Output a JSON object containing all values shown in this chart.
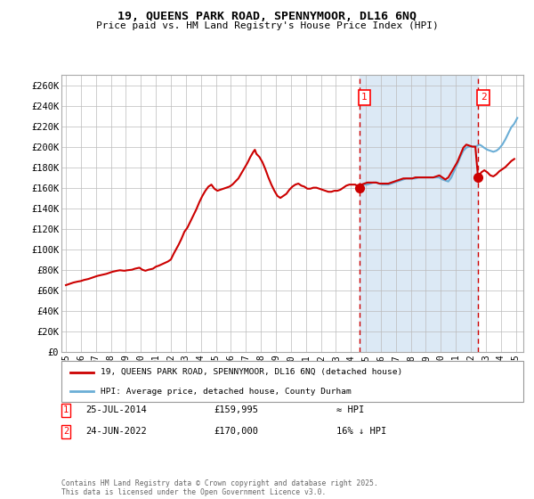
{
  "title": "19, QUEENS PARK ROAD, SPENNYMOOR, DL16 6NQ",
  "subtitle": "Price paid vs. HM Land Registry's House Price Index (HPI)",
  "yticks": [
    0,
    20000,
    40000,
    60000,
    80000,
    100000,
    120000,
    140000,
    160000,
    180000,
    200000,
    220000,
    240000,
    260000
  ],
  "ytick_labels": [
    "£0",
    "£20K",
    "£40K",
    "£60K",
    "£80K",
    "£100K",
    "£120K",
    "£140K",
    "£160K",
    "£180K",
    "£200K",
    "£220K",
    "£240K",
    "£260K"
  ],
  "ylim": [
    0,
    270000
  ],
  "xlim_start": 1994.7,
  "xlim_end": 2025.5,
  "hpi_color": "#6baed6",
  "price_color": "#cc0000",
  "shade_color": "#dce9f5",
  "grid_color": "#bbbbbb",
  "vline_color": "#cc0000",
  "sale1_x": 2014.56,
  "sale1_y": 159995,
  "sale1_label": "1",
  "sale1_date": "25-JUL-2014",
  "sale1_price": "£159,995",
  "sale1_vs_hpi": "≈ HPI",
  "sale2_x": 2022.48,
  "sale2_y": 170000,
  "sale2_label": "2",
  "sale2_date": "24-JUN-2022",
  "sale2_price": "£170,000",
  "sale2_vs_hpi": "16% ↓ HPI",
  "legend_line1": "19, QUEENS PARK ROAD, SPENNYMOOR, DL16 6NQ (detached house)",
  "legend_line2": "HPI: Average price, detached house, County Durham",
  "footnote": "Contains HM Land Registry data © Crown copyright and database right 2025.\nThis data is licensed under the Open Government Licence v3.0.",
  "hpi_data_x": [
    2014.56,
    2014.7,
    2014.88,
    2015.1,
    2015.3,
    2015.5,
    2015.7,
    2015.88,
    2016.1,
    2016.3,
    2016.5,
    2016.7,
    2016.88,
    2017.1,
    2017.3,
    2017.5,
    2017.7,
    2017.88,
    2018.1,
    2018.3,
    2018.5,
    2018.7,
    2018.88,
    2019.1,
    2019.3,
    2019.5,
    2019.7,
    2019.88,
    2020.1,
    2020.3,
    2020.5,
    2020.7,
    2020.88,
    2021.1,
    2021.3,
    2021.5,
    2021.7,
    2021.88,
    2022.1,
    2022.3,
    2022.56,
    2022.7,
    2022.88,
    2023.1,
    2023.3,
    2023.5,
    2023.7,
    2023.88,
    2024.1,
    2024.3,
    2024.5,
    2024.7,
    2024.88,
    2025.1
  ],
  "hpi_data_y": [
    162000,
    162000,
    163000,
    163000,
    164000,
    165000,
    165000,
    164000,
    163000,
    163000,
    163000,
    164000,
    165000,
    166000,
    167000,
    168000,
    169000,
    169000,
    169000,
    169000,
    170000,
    170000,
    170000,
    170000,
    170000,
    170000,
    170000,
    170000,
    168000,
    167000,
    166000,
    170000,
    176000,
    183000,
    190000,
    196000,
    199000,
    200000,
    200000,
    200000,
    202000,
    201000,
    199000,
    197000,
    196000,
    195000,
    196000,
    198000,
    202000,
    207000,
    213000,
    219000,
    222000,
    228000
  ],
  "price_data_x": [
    1995.0,
    1995.2,
    1995.5,
    1995.8,
    1996.0,
    1996.2,
    1996.5,
    1996.7,
    1996.9,
    1997.1,
    1997.4,
    1997.7,
    1997.9,
    1998.1,
    1998.4,
    1998.6,
    1998.9,
    1999.1,
    1999.4,
    1999.6,
    1999.9,
    2000.1,
    2000.3,
    2000.5,
    2000.8,
    2001.0,
    2001.2,
    2001.5,
    2001.8,
    2002.0,
    2002.2,
    2002.5,
    2002.7,
    2002.9,
    2003.1,
    2003.3,
    2003.5,
    2003.7,
    2003.9,
    2004.1,
    2004.3,
    2004.5,
    2004.7,
    2004.9,
    2005.1,
    2005.3,
    2005.5,
    2005.7,
    2005.9,
    2006.1,
    2006.3,
    2006.5,
    2006.7,
    2006.9,
    2007.1,
    2007.3,
    2007.5,
    2007.6,
    2007.7,
    2007.9,
    2008.1,
    2008.3,
    2008.5,
    2008.7,
    2008.9,
    2009.1,
    2009.3,
    2009.5,
    2009.7,
    2009.9,
    2010.1,
    2010.3,
    2010.5,
    2010.7,
    2010.9,
    2011.1,
    2011.3,
    2011.5,
    2011.7,
    2011.9,
    2012.1,
    2012.3,
    2012.5,
    2012.7,
    2012.9,
    2013.1,
    2013.3,
    2013.5,
    2013.7,
    2013.9,
    2014.1,
    2014.3,
    2014.56,
    2014.7,
    2014.9,
    2015.1,
    2015.3,
    2015.5,
    2015.7,
    2015.9,
    2016.1,
    2016.3,
    2016.5,
    2016.7,
    2016.9,
    2017.1,
    2017.3,
    2017.5,
    2017.7,
    2017.9,
    2018.1,
    2018.3,
    2018.5,
    2018.7,
    2018.9,
    2019.1,
    2019.3,
    2019.5,
    2019.7,
    2019.9,
    2020.1,
    2020.3,
    2020.5,
    2020.7,
    2020.9,
    2021.1,
    2021.3,
    2021.5,
    2021.7,
    2021.9,
    2022.1,
    2022.3,
    2022.48,
    2022.7,
    2022.9,
    2023.1,
    2023.3,
    2023.5,
    2023.7,
    2023.9,
    2024.1,
    2024.3,
    2024.5,
    2024.7,
    2024.9
  ],
  "price_data_y": [
    65000,
    66000,
    67500,
    68500,
    69000,
    70000,
    71000,
    72000,
    73000,
    74000,
    75000,
    76000,
    77000,
    78000,
    79000,
    79500,
    79000,
    79500,
    80000,
    81000,
    82000,
    80000,
    79000,
    80000,
    81000,
    83000,
    84000,
    86000,
    88000,
    90000,
    96000,
    104000,
    110000,
    117000,
    121000,
    127000,
    133000,
    139000,
    146000,
    152000,
    157000,
    161000,
    163000,
    159000,
    157000,
    158000,
    159000,
    160000,
    161000,
    163000,
    166000,
    169000,
    174000,
    179000,
    184000,
    190000,
    195000,
    197000,
    193000,
    190000,
    185000,
    178000,
    170000,
    163000,
    157000,
    152000,
    150000,
    152000,
    154000,
    158000,
    161000,
    163000,
    164000,
    162000,
    161000,
    159000,
    159000,
    160000,
    160000,
    159000,
    158000,
    157000,
    156000,
    156000,
    157000,
    157000,
    158000,
    160000,
    162000,
    163000,
    163000,
    163000,
    159995,
    163000,
    164000,
    165000,
    165000,
    165000,
    165000,
    164000,
    164000,
    164000,
    164000,
    165000,
    166000,
    167000,
    168000,
    169000,
    169000,
    169000,
    169000,
    170000,
    170000,
    170000,
    170000,
    170000,
    170000,
    170000,
    171000,
    172000,
    170000,
    168000,
    170000,
    175000,
    180000,
    185000,
    192000,
    199000,
    202000,
    201000,
    200000,
    200000,
    170000,
    175000,
    177000,
    175000,
    172000,
    171000,
    173000,
    176000,
    178000,
    180000,
    183000,
    186000,
    188000
  ]
}
